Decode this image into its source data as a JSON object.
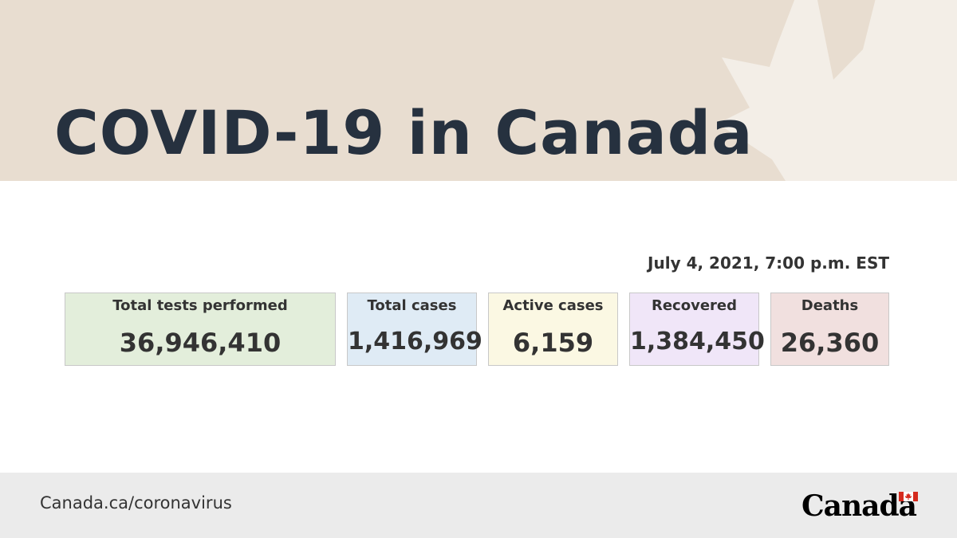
{
  "header": {
    "title": "COVID-19 in Canada"
  },
  "timestamp": "July 4, 2021, 7:00 p.m. EST",
  "stats": [
    {
      "label": "Total tests performed",
      "value": "36,946,410",
      "color": "#e3eedb"
    },
    {
      "label": "Total cases",
      "value": "1,416,969",
      "color": "#dfebf5"
    },
    {
      "label": "Active cases",
      "value": "6,159",
      "color": "#fbf8e3"
    },
    {
      "label": "Recovered",
      "value": "1,384,450",
      "color": "#f0e6f8"
    },
    {
      "label": "Deaths",
      "value": "26,360",
      "color": "#f1e0df"
    }
  ],
  "footer": {
    "link": "Canada.ca/coronavirus",
    "wordmark": "Canada",
    "background": "#ebebeb"
  },
  "colors": {
    "header_bg": "#e8ddd0",
    "title": "#26313f",
    "flag_red": "#d52b1e"
  },
  "icons": {
    "header_decoration": "maple-leaf-icon",
    "wordmark_flag": "canada-flag-icon"
  }
}
